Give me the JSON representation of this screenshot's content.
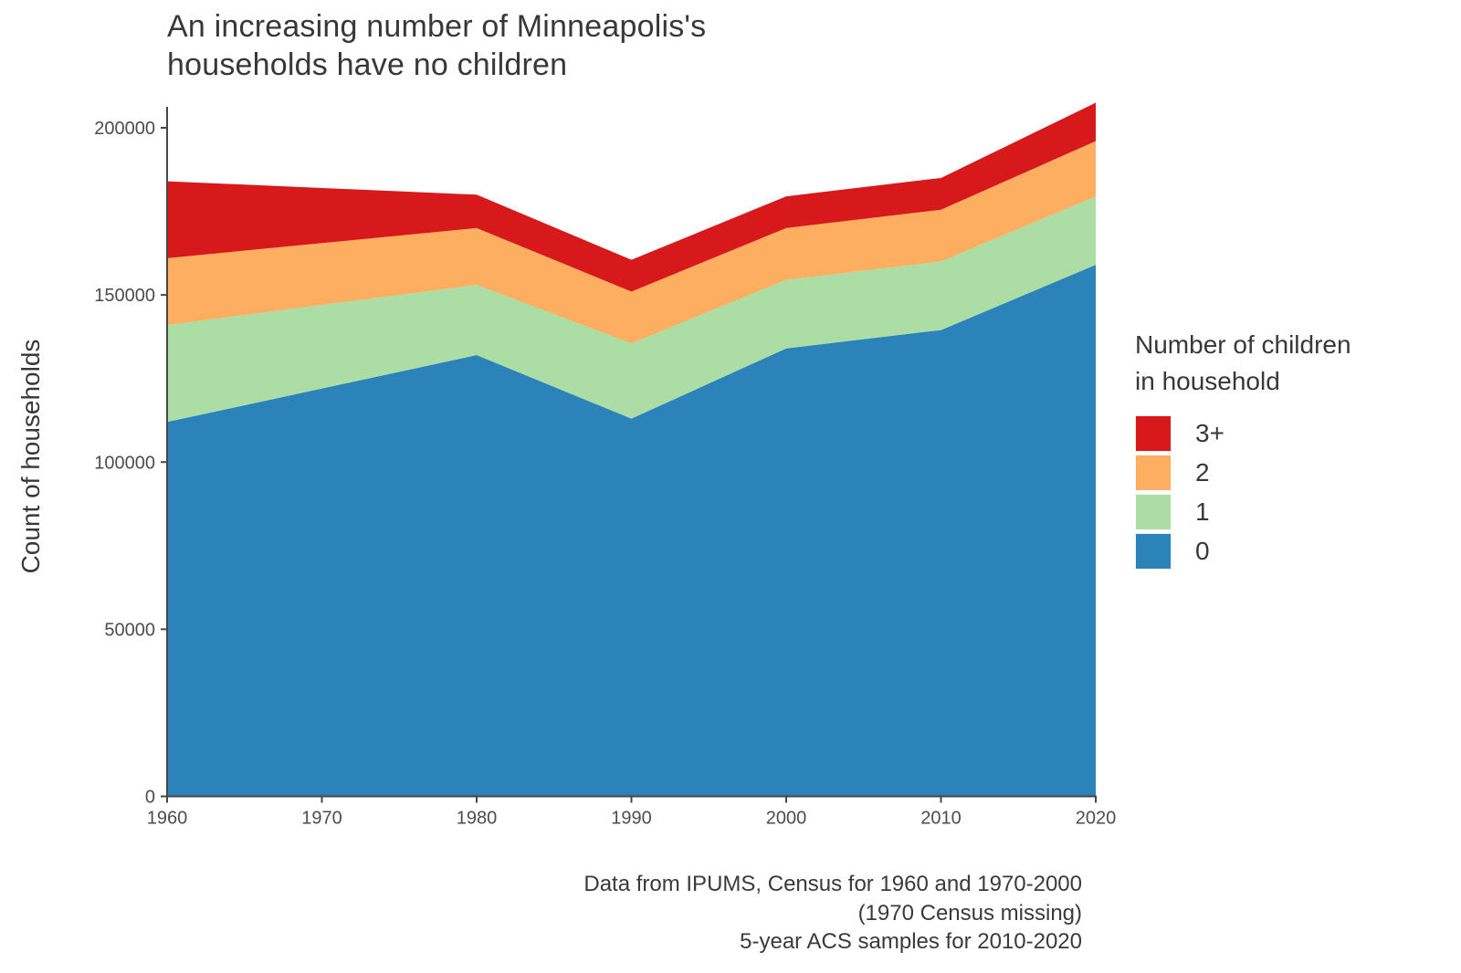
{
  "title": {
    "lines": [
      "An increasing number of Minneapolis's",
      "households have no children"
    ]
  },
  "y_axis": {
    "label": "Count of households",
    "ticks": [
      0,
      50000,
      100000,
      150000,
      200000
    ]
  },
  "x_axis": {
    "ticks": [
      1960,
      1970,
      1980,
      1990,
      2000,
      2010,
      2020
    ]
  },
  "legend": {
    "title_lines": [
      "Number of children",
      "in household"
    ],
    "items": [
      {
        "label": "3+",
        "color": "#d7191c"
      },
      {
        "label": "2",
        "color": "#fdae61"
      },
      {
        "label": "1",
        "color": "#abdda4"
      },
      {
        "label": "0",
        "color": "#2b83ba"
      }
    ]
  },
  "caption": {
    "lines": [
      "Data from IPUMS, Census for 1960 and 1970-2000",
      "(1970 Census missing)",
      "5-year ACS samples for 2010-2020"
    ]
  },
  "chart_data": {
    "type": "area",
    "stacked": true,
    "title": "An increasing number of Minneapolis's households have no children",
    "xlabel": "",
    "ylabel": "Count of households",
    "x": [
      1960,
      1980,
      1990,
      2000,
      2010,
      2020
    ],
    "missing_x": [
      1970
    ],
    "missing_x_note": "1970 Census missing; band edges interpolate straight from 1960 to 1980",
    "xlim": [
      1960,
      2020
    ],
    "ylim": [
      0,
      200000
    ],
    "grid": false,
    "legend_position": "right",
    "series": [
      {
        "name": "0",
        "color": "#2b83ba",
        "values": [
          112000,
          132000,
          113000,
          134000,
          139500,
          159000
        ]
      },
      {
        "name": "1",
        "color": "#abdda4",
        "values": [
          29000,
          21000,
          22500,
          20500,
          20500,
          20500
        ]
      },
      {
        "name": "2",
        "color": "#fdae61",
        "values": [
          20000,
          17000,
          15500,
          15500,
          15500,
          16500
        ]
      },
      {
        "name": "3+",
        "color": "#d7191c",
        "values": [
          23000,
          10000,
          9500,
          9500,
          9500,
          11500
        ]
      }
    ],
    "cumulative_tops": {
      "1960": [
        112000,
        141000,
        161000,
        184000
      ],
      "1980": [
        132000,
        153000,
        170000,
        180000
      ],
      "1990": [
        113000,
        135500,
        151000,
        160500
      ],
      "2000": [
        134000,
        154500,
        170000,
        179500
      ],
      "2010": [
        139500,
        160000,
        175500,
        185000
      ],
      "2020": [
        159000,
        179500,
        196000,
        207500
      ]
    }
  }
}
